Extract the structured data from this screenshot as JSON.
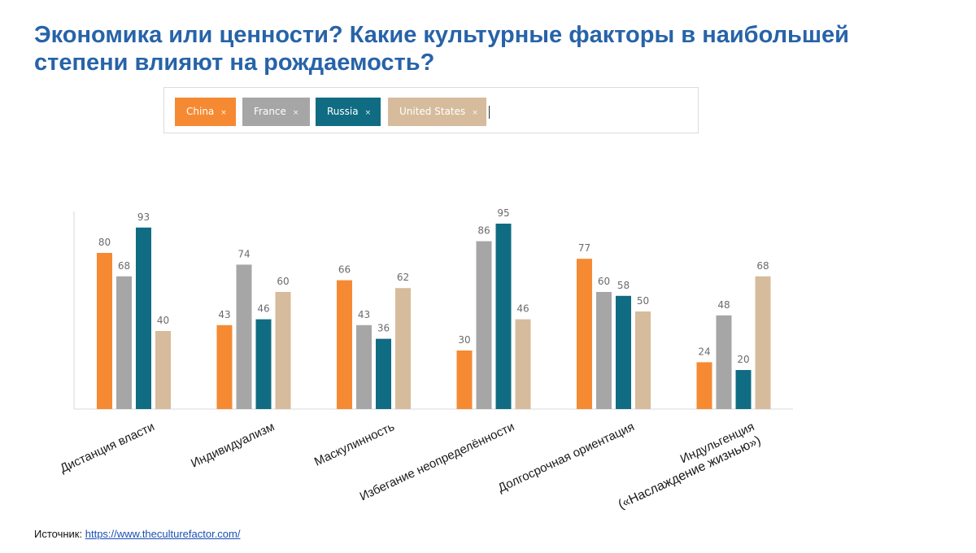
{
  "title": "Экономика или ценности? Какие культурные факторы в наибольшей степени влияют на рождаемость?",
  "filter": {
    "chips": [
      {
        "label": "China",
        "color": "#f58a33"
      },
      {
        "label": "France",
        "color": "#a6a6a6"
      },
      {
        "label": "Russia",
        "color": "#106c83"
      },
      {
        "label": "United States",
        "color": "#d6bc9c"
      }
    ],
    "remove_glyph": "×"
  },
  "source": {
    "prefix": "Источник: ",
    "link_text": "https://www.theculturefactor.com/"
  },
  "chart_data": {
    "type": "bar",
    "categories": [
      "Дистанция власти",
      "Индивидуализм",
      "Маскулинность",
      "Избегание неопределённости",
      "Долгосрочная ориентация",
      "Индульгенция"
    ],
    "category_sublabels": [
      "",
      "",
      "",
      "",
      "",
      "(«Наслаждение жизнью»)"
    ],
    "series": [
      {
        "name": "China",
        "color": "#f58a33",
        "values": [
          80,
          43,
          66,
          30,
          77,
          24
        ]
      },
      {
        "name": "France",
        "color": "#a6a6a6",
        "values": [
          68,
          74,
          43,
          86,
          60,
          48
        ]
      },
      {
        "name": "Russia",
        "color": "#106c83",
        "values": [
          93,
          46,
          36,
          95,
          58,
          20
        ]
      },
      {
        "name": "United States",
        "color": "#d6bc9c",
        "values": [
          40,
          60,
          62,
          46,
          50,
          68
        ]
      }
    ],
    "ylim": [
      0,
      100
    ],
    "grid": false,
    "legend": "top"
  }
}
